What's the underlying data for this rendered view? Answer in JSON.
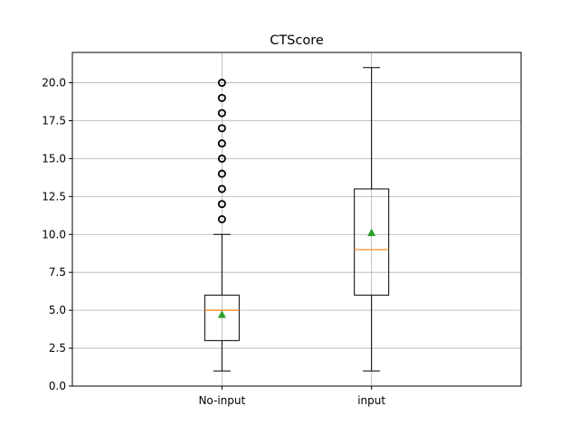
{
  "chart_data": {
    "type": "box",
    "title": "CTScore",
    "xlabel": "",
    "ylabel": "",
    "ylim": [
      0,
      22
    ],
    "y_ticks": [
      0.0,
      2.5,
      5.0,
      7.5,
      10.0,
      12.5,
      15.0,
      17.5,
      20.0
    ],
    "y_tick_labels": [
      "0.0",
      "2.5",
      "5.0",
      "7.5",
      "10.0",
      "12.5",
      "15.0",
      "17.5",
      "20.0"
    ],
    "grid": true,
    "legend": "none",
    "categories": [
      "No-input",
      "input"
    ],
    "boxes": [
      {
        "label": "No-input",
        "whisker_low": 1,
        "q1": 3,
        "median": 5,
        "q3": 6,
        "whisker_high": 10,
        "mean": 4.7,
        "outliers": [
          11,
          12,
          13,
          14,
          15,
          16,
          17,
          18,
          19,
          20
        ]
      },
      {
        "label": "input",
        "whisker_low": 1,
        "q1": 6,
        "median": 9,
        "q3": 13,
        "whisker_high": 21,
        "mean": 10.1,
        "outliers": []
      }
    ],
    "colors": {
      "box": "#000000",
      "median": "#ff7f0e",
      "mean": "#2ca02c",
      "grid": "#b0b0b0"
    }
  }
}
